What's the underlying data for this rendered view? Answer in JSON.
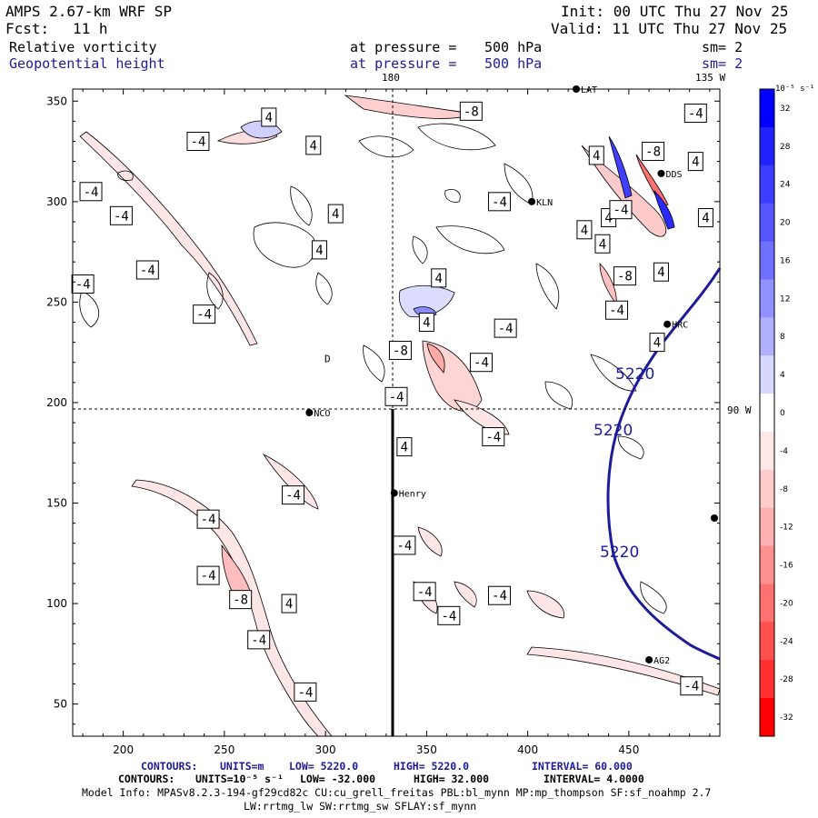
{
  "header": {
    "model": "AMPS 2.67-km WRF SP",
    "fcst_label": "Fcst:",
    "fcst_value": "11 h",
    "init": "Init: 00 UTC Thu 27 Nov 25",
    "valid": "Valid: 11 UTC Thu 27 Nov 25",
    "field1": {
      "name": "Relative vorticity",
      "pressure_text": "at pressure =",
      "pressure": "500 hPa",
      "sm": "sm= 2"
    },
    "field2": {
      "name": "Geopotential height",
      "pressure_text": "at pressure =",
      "pressure": "500 hPa",
      "sm": "sm= 2"
    }
  },
  "map_labels": {
    "lon_180": "180",
    "lon_135w": "135 W",
    "lon_90w": "90 W"
  },
  "chart_data": {
    "type": "contour_map",
    "x_ticks": [
      200,
      250,
      300,
      350,
      400,
      450
    ],
    "y_ticks": [
      50,
      100,
      150,
      200,
      250,
      300,
      350
    ],
    "xlim": [
      175,
      495
    ],
    "ylim": [
      34,
      356
    ],
    "stations": [
      {
        "name": "NCO",
        "x": 292,
        "y": 195
      },
      {
        "name": "Henry",
        "x": 334,
        "y": 155
      },
      {
        "name": "KLN",
        "x": 402,
        "y": 300
      },
      {
        "name": "HRC",
        "x": 469,
        "y": 239
      },
      {
        "name": "AG2",
        "x": 460,
        "y": 72
      },
      {
        "name": "DDS",
        "x": 466,
        "y": 314
      },
      {
        "name": "LAT",
        "x": 424,
        "y": 356
      }
    ],
    "height_contour": {
      "value": 5220,
      "units": "m",
      "labels": [
        "5220",
        "5220",
        "5220"
      ]
    },
    "vorticity_labels": [
      {
        "t": "4",
        "x": 272,
        "y": 342
      },
      {
        "t": "-4",
        "x": 237,
        "y": 330
      },
      {
        "t": "4",
        "x": 294,
        "y": 328
      },
      {
        "t": "-4",
        "x": 184,
        "y": 305
      },
      {
        "t": "-8",
        "x": 372,
        "y": 345
      },
      {
        "t": "-4",
        "x": 199,
        "y": 293
      },
      {
        "t": "4",
        "x": 305,
        "y": 294
      },
      {
        "t": "4",
        "x": 297,
        "y": 276
      },
      {
        "t": "-4",
        "x": 212,
        "y": 266
      },
      {
        "t": "-4",
        "x": 240,
        "y": 244
      },
      {
        "t": "-4",
        "x": 180,
        "y": 259
      },
      {
        "t": "4",
        "x": 356,
        "y": 262
      },
      {
        "t": "-4",
        "x": 386,
        "y": 300
      },
      {
        "t": "4",
        "x": 437,
        "y": 279
      },
      {
        "t": "4",
        "x": 466,
        "y": 265
      },
      {
        "t": "-8",
        "x": 448,
        "y": 263
      },
      {
        "t": "-4",
        "x": 444,
        "y": 246
      },
      {
        "t": "-8",
        "x": 462,
        "y": 325
      },
      {
        "t": "-4",
        "x": 483,
        "y": 344
      },
      {
        "t": "4",
        "x": 483,
        "y": 320
      },
      {
        "t": "4",
        "x": 488,
        "y": 292
      },
      {
        "t": "4",
        "x": 434,
        "y": 323
      },
      {
        "t": "4",
        "x": 440,
        "y": 292
      },
      {
        "t": "-4",
        "x": 446,
        "y": 296
      },
      {
        "t": "4",
        "x": 428,
        "y": 286
      },
      {
        "t": "4",
        "x": 350,
        "y": 240
      },
      {
        "t": "-4",
        "x": 389,
        "y": 237
      },
      {
        "t": "-8",
        "x": 337,
        "y": 226
      },
      {
        "t": "-4",
        "x": 377,
        "y": 220
      },
      {
        "t": "4",
        "x": 464,
        "y": 230
      },
      {
        "t": "-4",
        "x": 335,
        "y": 203
      },
      {
        "t": "4",
        "x": 339,
        "y": 178
      },
      {
        "t": "-4",
        "x": 383,
        "y": 183
      },
      {
        "t": "-4",
        "x": 284,
        "y": 154
      },
      {
        "t": "-4",
        "x": 242,
        "y": 142
      },
      {
        "t": "-4",
        "x": 339,
        "y": 129
      },
      {
        "t": "-4",
        "x": 242,
        "y": 114
      },
      {
        "t": "-8",
        "x": 258,
        "y": 102
      },
      {
        "t": "4",
        "x": 282,
        "y": 100
      },
      {
        "t": "-4",
        "x": 349,
        "y": 106
      },
      {
        "t": "-4",
        "x": 386,
        "y": 104
      },
      {
        "t": "-4",
        "x": 361,
        "y": 94
      },
      {
        "t": "-4",
        "x": 267,
        "y": 82
      },
      {
        "t": "-4",
        "x": 290,
        "y": 56
      },
      {
        "t": "-4",
        "x": 481,
        "y": 59
      },
      {
        "t": "D",
        "x": 301,
        "y": 222
      }
    ],
    "colorbar": {
      "units": "10⁻⁵ s⁻¹",
      "ticks": [
        "32",
        "28",
        "24",
        "20",
        "16",
        "12",
        "8",
        "4",
        "0",
        "-4",
        "-8",
        "-12",
        "-16",
        "-20",
        "-24",
        "-28",
        "-32"
      ],
      "colors": [
        "#0000ff",
        "#2222ff",
        "#3d3dff",
        "#5555ff",
        "#7070ff",
        "#9090ff",
        "#b0b0ff",
        "#d8d8ff",
        "#ffffff",
        "#ffe8e8",
        "#ffcccc",
        "#ffb0b0",
        "#ff9090",
        "#ff7070",
        "#ff5050",
        "#ff3030",
        "#ff0000"
      ]
    }
  },
  "footer": {
    "c1": {
      "label": "CONTOURS:",
      "units": "UNITS=m",
      "low": "LOW=  5220.0",
      "high": "HIGH=  5220.0",
      "interval": "INTERVAL=  60.000"
    },
    "c2": {
      "label": "CONTOURS:",
      "units": "UNITS=10⁻⁵ s⁻¹",
      "low": "LOW= -32.000",
      "high": "HIGH=  32.000",
      "interval": "INTERVAL=  4.0000"
    },
    "model_info": "Model Info: MPASv8.2.3-194-gf29cd82c CU:cu_grell_freitas PBL:bl_mynn MP:mp_thompson SF:sf_noahmp 2.7",
    "model_info2": "LW:rrtmg_lw SW:rrtmg_sw SFLAY:sf_mynn"
  }
}
